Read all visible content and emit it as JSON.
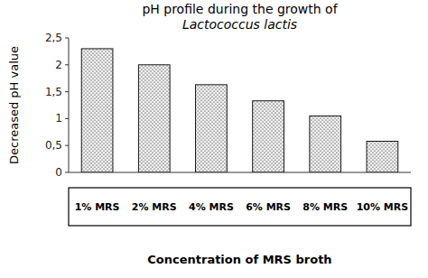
{
  "chart_data": {
    "type": "bar",
    "title": "pH profile during the growth of",
    "subtitle": "Lactococcus lactis",
    "categories": [
      "1% MRS",
      "2% MRS",
      "4% MRS",
      "6% MRS",
      "8% MRS",
      "10% MRS"
    ],
    "values": [
      2.3,
      2.0,
      1.63,
      1.33,
      1.05,
      0.58
    ],
    "color": "#f0f0f0",
    "y_label": "Decreased pH value",
    "x_label": "Concentration of MRS broth",
    "ylim": [
      0,
      2.5
    ],
    "yticks": [
      0,
      {
        "value": 0.5,
        "label": "0,5"
      },
      1,
      {
        "value": 1.5,
        "label": "1,5"
      },
      2,
      {
        "value": 2.5,
        "label": "2,5"
      }
    ],
    "grid": false,
    "tick_labels": "y"
  }
}
